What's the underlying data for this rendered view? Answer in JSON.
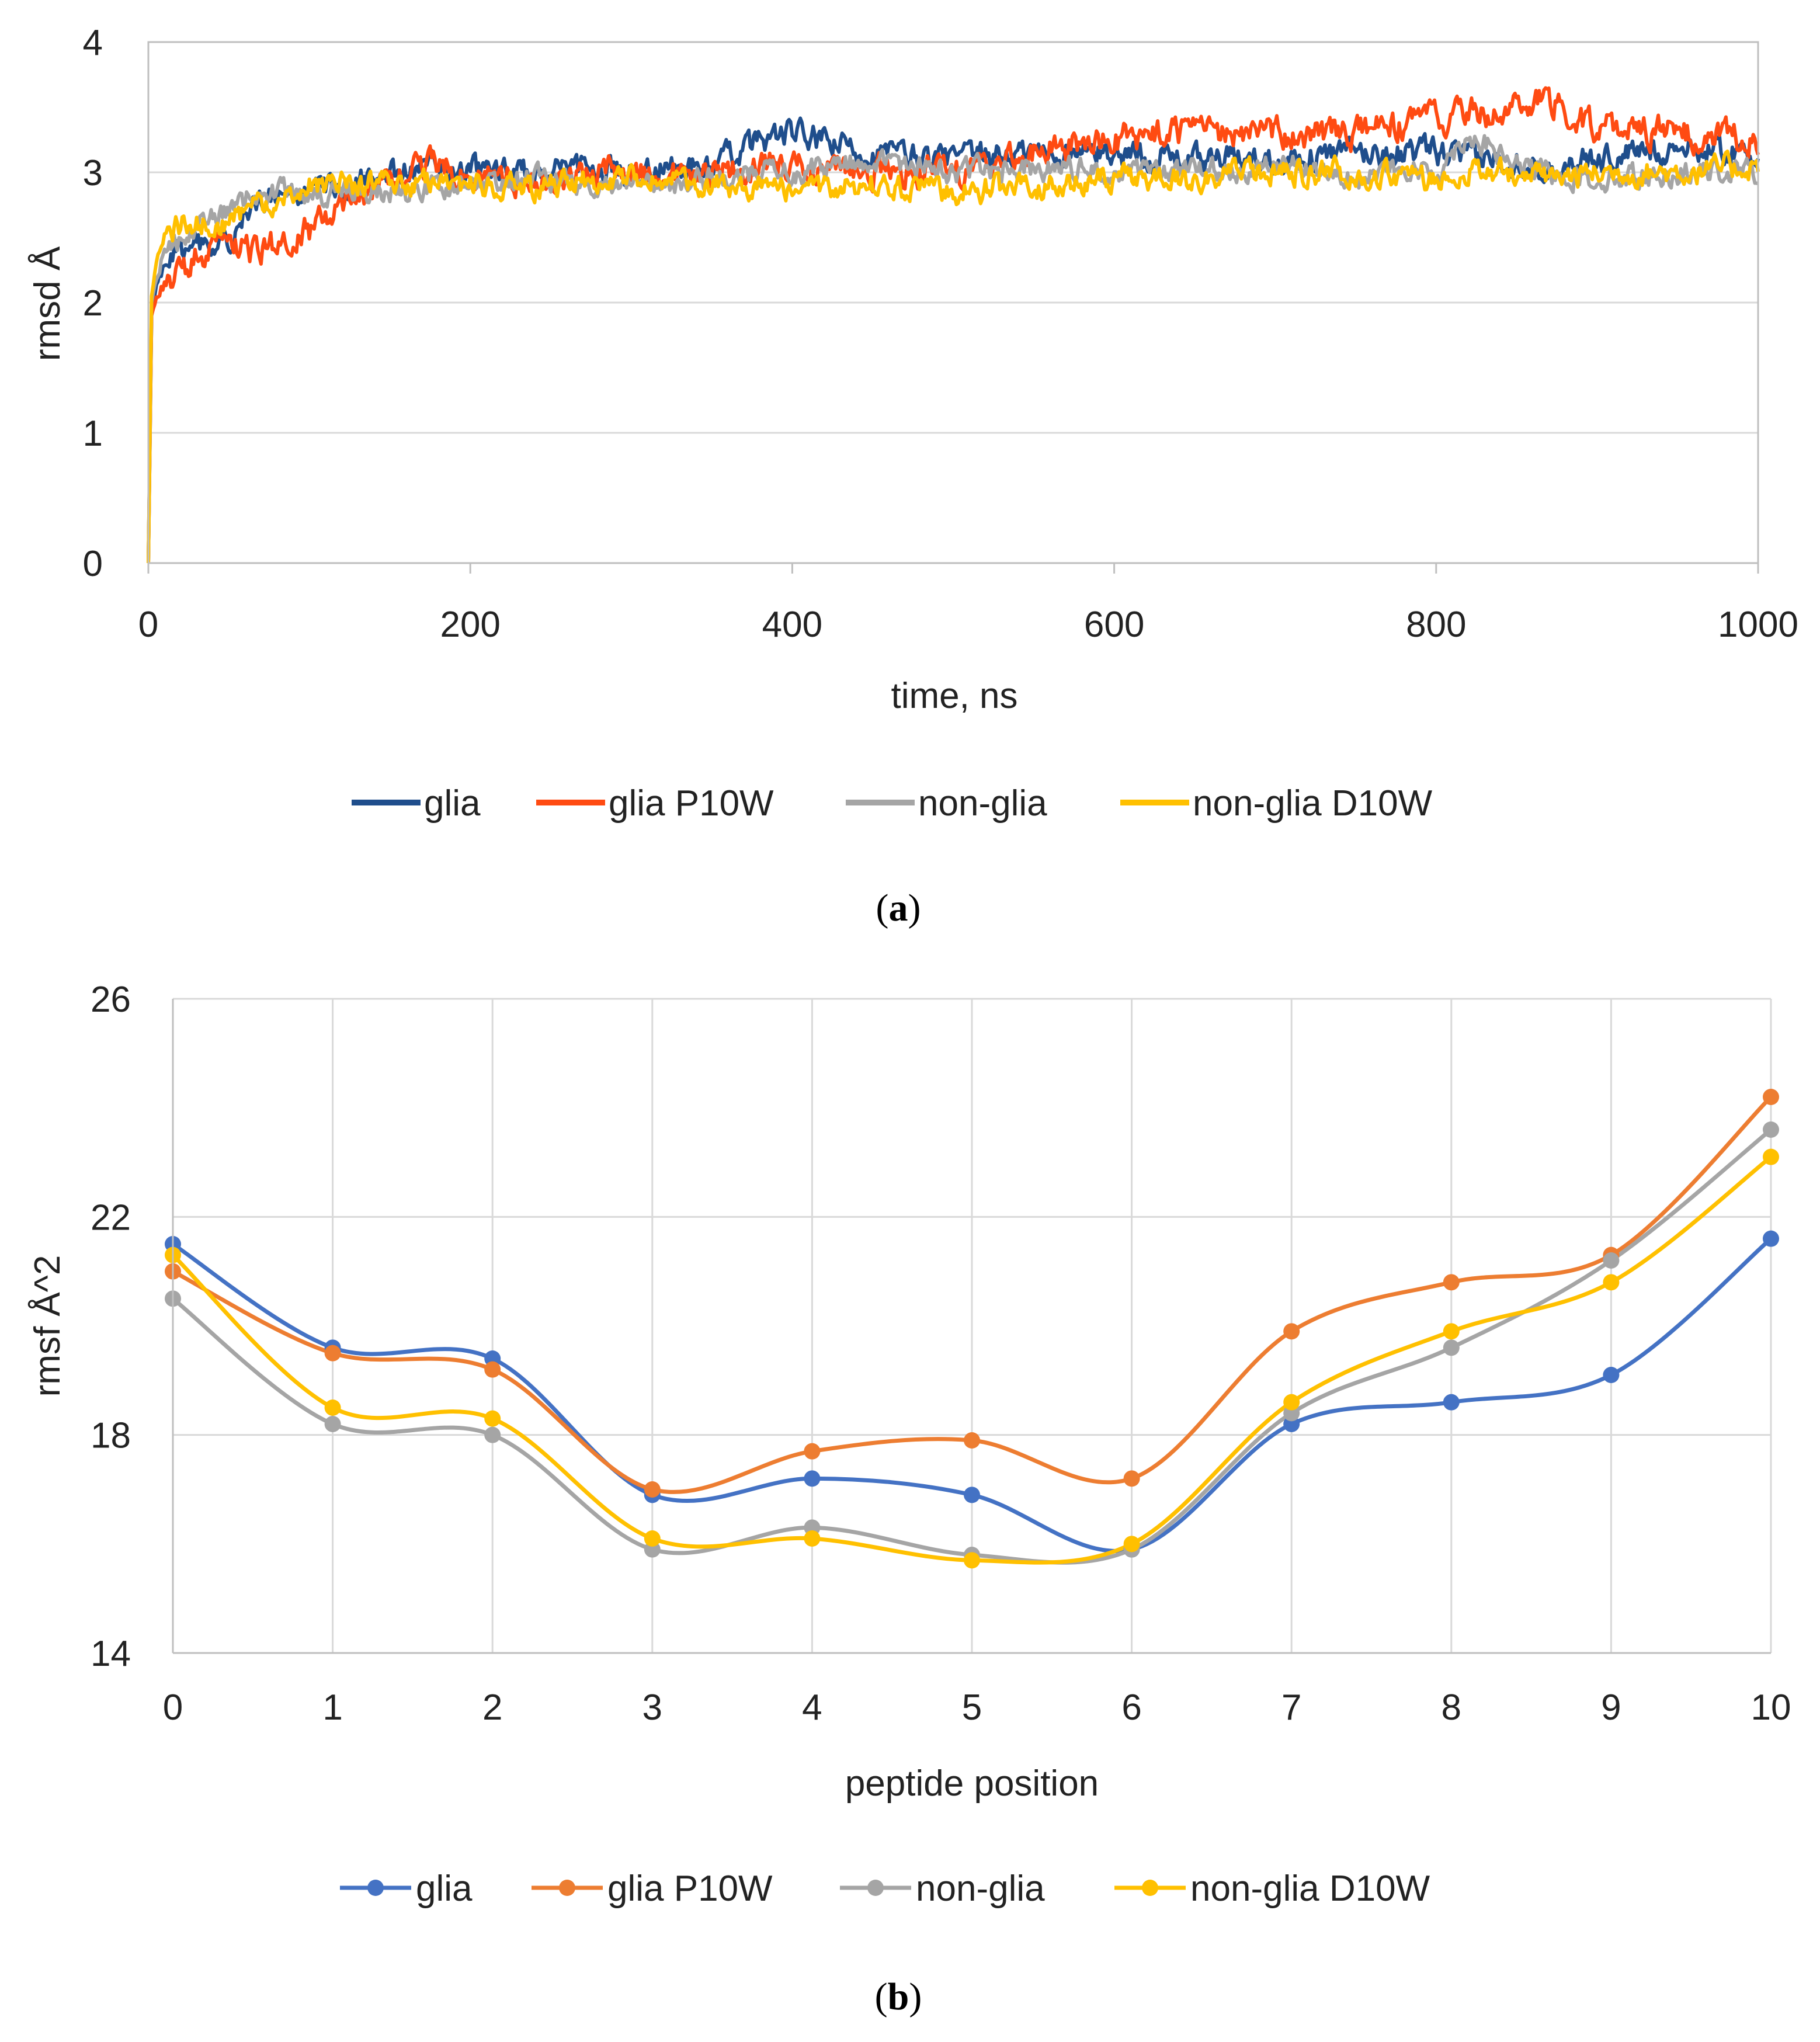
{
  "colors": {
    "a": {
      "glia": "#1f4e8c",
      "glia P10W": "#ff4b12",
      "non-glia": "#a5a5a5",
      "non-glia D10W": "#ffc000"
    },
    "b": {
      "glia": "#4472c4",
      "glia P10W": "#ed7d31",
      "non-glia": "#a5a5a5",
      "non-glia D10W": "#ffc000"
    },
    "grid": "#d9d9d9",
    "axis": "#bfbfbf"
  },
  "captions": {
    "a_open": "(",
    "a_letter": "a",
    "a_close": ")",
    "b_open": "(",
    "b_letter": "b",
    "b_close": ")"
  },
  "chart_data": [
    {
      "type": "line",
      "xlabel": "time, ns",
      "ylabel": "rmsd Å",
      "xlim": [
        0,
        1000
      ],
      "ylim": [
        0,
        4
      ],
      "xticks": [
        0,
        200,
        400,
        600,
        800,
        1000
      ],
      "yticks": [
        0,
        1,
        2,
        3,
        4
      ],
      "grid": "horizontal",
      "legend_position": "bottom",
      "x": [
        0,
        2,
        5,
        10,
        15,
        20,
        30,
        40,
        50,
        60,
        70,
        80,
        100,
        120,
        140,
        160,
        180,
        200,
        250,
        300,
        350,
        380,
        400,
        430,
        450,
        500,
        550,
        600,
        650,
        700,
        750,
        800,
        820,
        850,
        870,
        900,
        950,
        1000
      ],
      "series": [
        {
          "name": "glia",
          "values": [
            0,
            1.9,
            2.1,
            2.3,
            2.35,
            2.4,
            2.45,
            2.4,
            2.5,
            2.7,
            2.75,
            2.8,
            2.85,
            2.9,
            3.0,
            3.0,
            3.05,
            3.0,
            3.0,
            3.0,
            3.05,
            3.25,
            3.3,
            3.2,
            3.15,
            3.1,
            3.15,
            3.15,
            3.1,
            3.1,
            3.15,
            3.15,
            3.1,
            3.1,
            3.05,
            3.1,
            3.2,
            3.15
          ]
        },
        {
          "name": "glia P10W",
          "values": [
            0,
            1.9,
            2.05,
            2.15,
            2.2,
            2.25,
            2.35,
            2.4,
            2.4,
            2.4,
            2.4,
            2.45,
            2.55,
            2.75,
            2.9,
            3.0,
            3.05,
            2.95,
            2.95,
            3.0,
            3.0,
            3.05,
            3.05,
            3.05,
            3.0,
            3.0,
            3.15,
            3.25,
            3.3,
            3.3,
            3.3,
            3.4,
            3.45,
            3.5,
            3.55,
            3.35,
            3.3,
            3.25
          ]
        },
        {
          "name": "non-glia",
          "values": [
            0,
            2.0,
            2.2,
            2.4,
            2.45,
            2.5,
            2.6,
            2.65,
            2.7,
            2.8,
            2.85,
            2.85,
            2.8,
            2.85,
            2.85,
            2.85,
            2.9,
            2.9,
            2.95,
            2.9,
            2.95,
            3.0,
            3.0,
            3.05,
            3.1,
            3.0,
            3.05,
            3.0,
            3.0,
            3.05,
            3.0,
            3.0,
            3.3,
            3.05,
            3.0,
            2.95,
            3.0,
            3.0
          ]
        },
        {
          "name": "non-glia D10W",
          "values": [
            0,
            2.05,
            2.3,
            2.5,
            2.55,
            2.6,
            2.6,
            2.6,
            2.6,
            2.7,
            2.75,
            2.8,
            2.9,
            2.9,
            2.9,
            2.9,
            2.95,
            2.9,
            2.9,
            2.95,
            2.9,
            2.9,
            2.85,
            2.9,
            2.9,
            2.85,
            2.9,
            2.95,
            2.95,
            3.0,
            3.0,
            2.95,
            3.0,
            3.0,
            2.95,
            3.0,
            3.0,
            3.05
          ]
        }
      ]
    },
    {
      "type": "line",
      "xlabel": "peptide position",
      "ylabel": "rmsf Å^2",
      "xlim": [
        0,
        10
      ],
      "ylim": [
        14,
        26
      ],
      "categories": [
        "0",
        "1",
        "2",
        "3",
        "4",
        "5",
        "6",
        "7",
        "8",
        "9",
        "10"
      ],
      "yticks": [
        14,
        18,
        22,
        26
      ],
      "grid": "both",
      "legend_position": "bottom",
      "markers": "circle",
      "smooth": true,
      "series": [
        {
          "name": "glia",
          "values": [
            21.5,
            19.6,
            19.4,
            16.9,
            17.2,
            16.9,
            15.9,
            18.2,
            18.6,
            19.1,
            21.6
          ]
        },
        {
          "name": "glia P10W",
          "values": [
            21.0,
            19.5,
            19.2,
            17.0,
            17.7,
            17.9,
            17.2,
            19.9,
            20.8,
            21.3,
            24.2
          ]
        },
        {
          "name": "non-glia",
          "values": [
            20.5,
            18.2,
            18.0,
            15.9,
            16.3,
            15.8,
            15.9,
            18.4,
            19.6,
            21.2,
            23.6
          ]
        },
        {
          "name": "non-glia D10W",
          "values": [
            21.3,
            18.5,
            18.3,
            16.1,
            16.1,
            15.7,
            16.0,
            18.6,
            19.9,
            20.8,
            23.1
          ]
        }
      ]
    }
  ]
}
